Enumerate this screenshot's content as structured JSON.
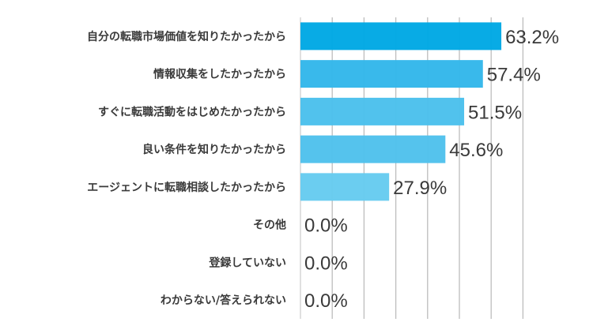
{
  "chart_data": {
    "type": "bar",
    "orientation": "horizontal",
    "categories": [
      "自分の転職市場価値を知りたかったから",
      "情報収集をしたかったから",
      "すぐに転職活動をはじめたかったから",
      "良い条件を知りたかったから",
      "エージェントに転職相談したかったから",
      "その他",
      "登録していない",
      "わからない/答えられない"
    ],
    "values": [
      63.2,
      57.4,
      51.5,
      45.6,
      27.9,
      0.0,
      0.0,
      0.0
    ],
    "data_labels": [
      "63.2%",
      "57.4%",
      "51.5%",
      "45.6%",
      "27.9%",
      "0.0%",
      "0.0%",
      "0.0%"
    ],
    "xlim": [
      0,
      70
    ],
    "grid_step": 10,
    "grid": true,
    "axis_tick_labels_shown": false,
    "colors": [
      "#00a8e4",
      "#33b7ea",
      "#4bc0ec",
      "#4fc1ec",
      "#66cbf0",
      "#66cbf0",
      "#66cbf0",
      "#66cbf0"
    ],
    "title": "",
    "xlabel": "",
    "ylabel": ""
  }
}
